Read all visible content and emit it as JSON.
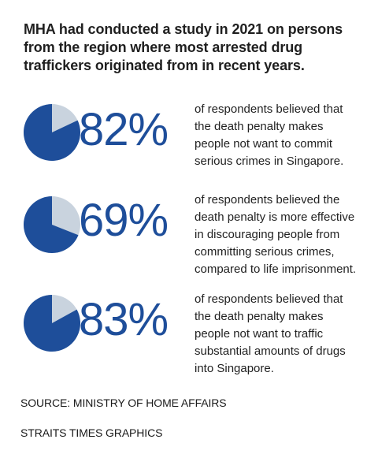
{
  "headline": "MHA had conducted a study in 2021 on persons\nfrom the region where most arrested drug\ntraffickers originated from in recent years.",
  "colors": {
    "filled": "#1e4e9a",
    "remainder": "#c9d3de",
    "text": "#1e4e9a"
  },
  "chart_data": {
    "type": "pie",
    "title": "",
    "series": [
      {
        "value": 82,
        "label": "82%",
        "description": "of respondents believed that\nthe death penalty makes\npeople not want to commit\nserious crimes in Singapore."
      },
      {
        "value": 69,
        "label": "69%",
        "description": "of respondents believed the\ndeath penalty is more effective\nin discouraging people from\ncommitting serious crimes,\ncompared to life imprisonment."
      },
      {
        "value": 83,
        "label": "83%",
        "description": "of respondents believed that\nthe death penalty makes\npeople not want to traffic\nsubstantial amounts of drugs\ninto Singapore."
      }
    ]
  },
  "footer": {
    "source": "SOURCE: MINISTRY OF HOME AFFAIRS",
    "credit": "STRAITS TIMES GRAPHICS"
  }
}
